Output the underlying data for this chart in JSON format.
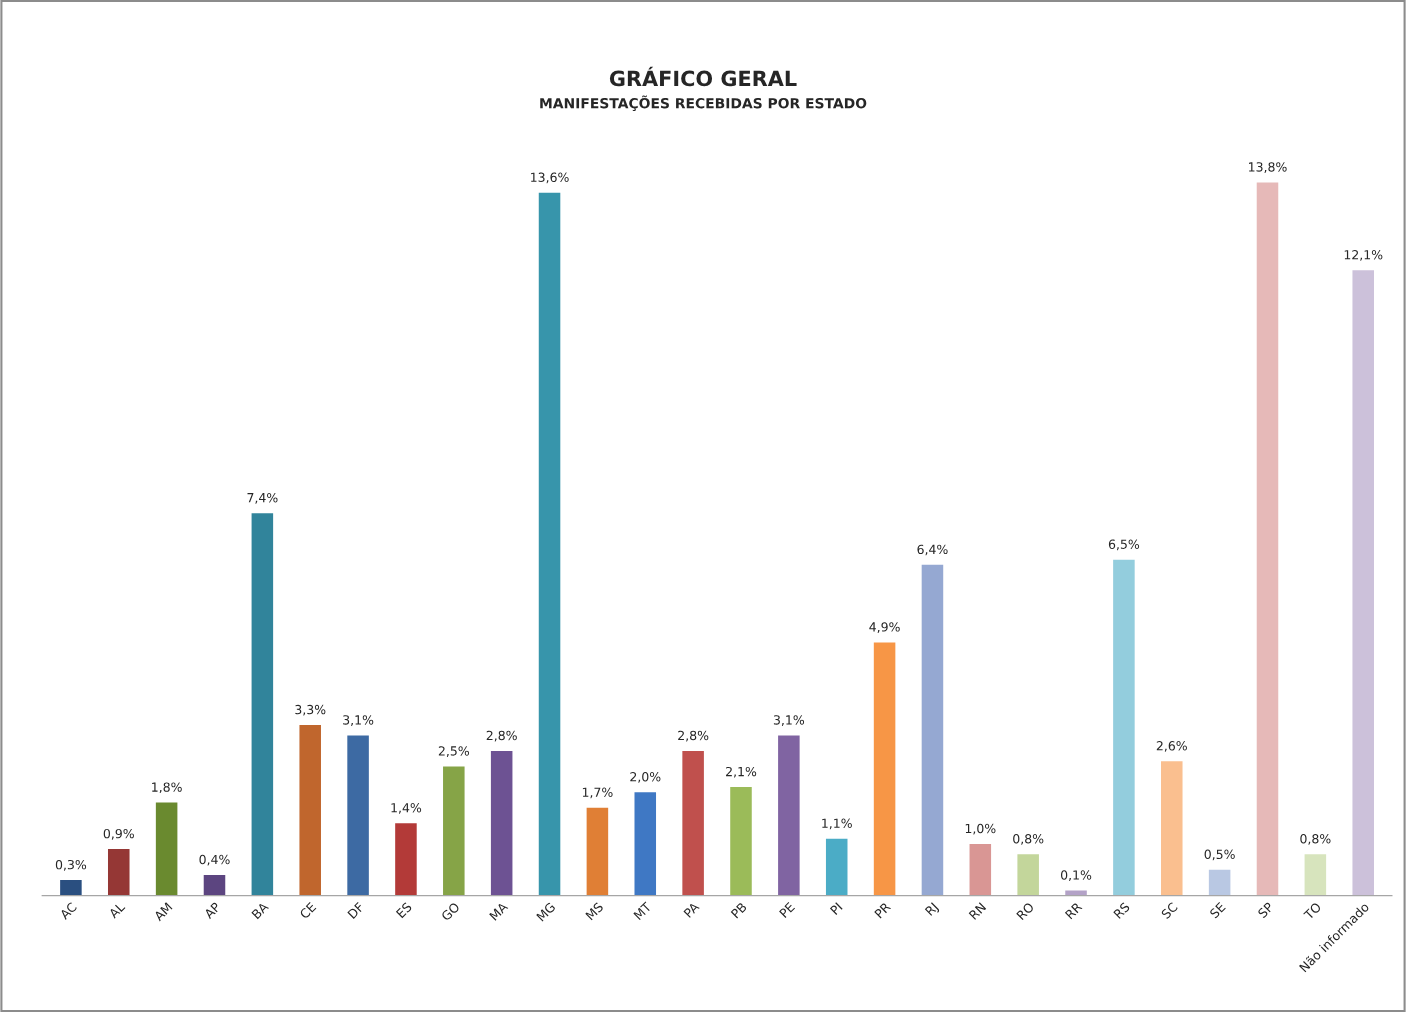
{
  "chart_data": {
    "type": "bar",
    "title": "GRÁFICO GERAL",
    "subtitle": "MANIFESTAÇÕES RECEBIDAS POR ESTADO",
    "categories": [
      "AC",
      "AL",
      "AM",
      "AP",
      "BA",
      "CE",
      "DF",
      "ES",
      "GO",
      "MA",
      "MG",
      "MS",
      "MT",
      "PA",
      "PB",
      "PE",
      "PI",
      "PR",
      "RJ",
      "RN",
      "RO",
      "RR",
      "RS",
      "SC",
      "SE",
      "SP",
      "TO",
      "Não informado"
    ],
    "values": [
      0.3,
      0.9,
      1.8,
      0.4,
      7.4,
      3.3,
      3.1,
      1.4,
      2.5,
      2.8,
      13.6,
      1.7,
      2.0,
      2.8,
      2.1,
      3.1,
      1.1,
      4.9,
      6.4,
      1.0,
      0.8,
      0.1,
      6.5,
      2.6,
      0.5,
      13.8,
      0.8,
      12.1
    ],
    "value_labels": [
      "0,3%",
      "0,9%",
      "1,8%",
      "0,4%",
      "7,4%",
      "3,3%",
      "3,1%",
      "1,4%",
      "2,5%",
      "2,8%",
      "13,6%",
      "1,7%",
      "2,0%",
      "2,8%",
      "2,1%",
      "3,1%",
      "1,1%",
      "4,9%",
      "6,4%",
      "1,0%",
      "0,8%",
      "0,1%",
      "6,5%",
      "2,6%",
      "0,5%",
      "13,8%",
      "0,8%",
      "12,1%"
    ],
    "colors": [
      "#2a4f80",
      "#953735",
      "#6a8a2f",
      "#5c4580",
      "#31849b",
      "#c0662d",
      "#3d6aa3",
      "#b33a38",
      "#86a447",
      "#6d5293",
      "#3795ab",
      "#e07f35",
      "#3f78c4",
      "#c0504d",
      "#9bbb59",
      "#8064a2",
      "#4bacc6",
      "#f79646",
      "#95a8d2",
      "#d99694",
      "#c3d69b",
      "#b3a2c7",
      "#93cddd",
      "#fabf8f",
      "#b9c8e3",
      "#e6b9b8",
      "#d7e4bd",
      "#ccc1da"
    ],
    "tick_labels": "x",
    "grid": false,
    "legend": false
  }
}
